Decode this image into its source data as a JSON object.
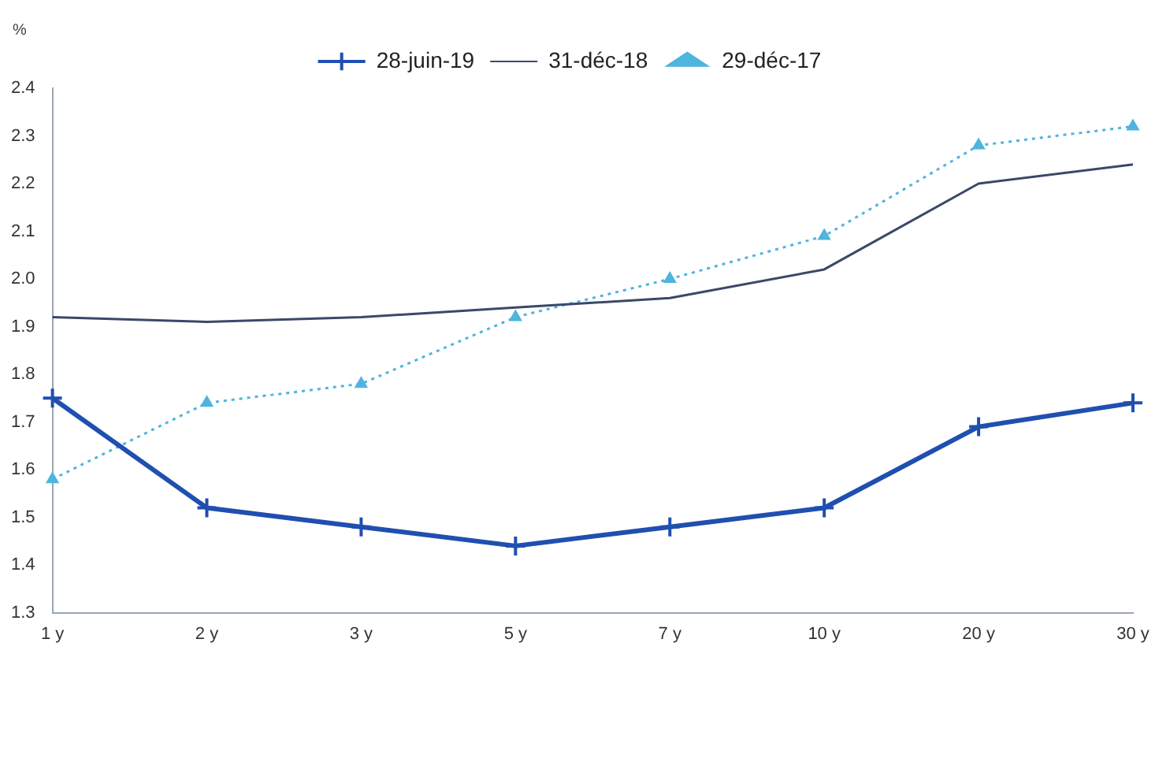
{
  "chart_data": {
    "type": "line",
    "ylabel": "%",
    "categories": [
      "1 y",
      "2 y",
      "3 y",
      "5 y",
      "7 y",
      "10 y",
      "20 y",
      "30 y"
    ],
    "series": [
      {
        "name": "28-juin-19",
        "color": "#1f4fb0",
        "marker": "cross",
        "line_style": "solid",
        "values": [
          1.75,
          1.52,
          1.48,
          1.44,
          1.48,
          1.52,
          1.69,
          1.74
        ]
      },
      {
        "name": "31-déc-18",
        "color": "#3c4868",
        "marker": "none",
        "line_style": "solid",
        "values": [
          1.92,
          1.91,
          1.92,
          1.94,
          1.96,
          2.02,
          2.2,
          2.24
        ]
      },
      {
        "name": "29-déc-17",
        "color": "#4fb4de",
        "marker": "triangle",
        "line_style": "dotted",
        "values": [
          1.58,
          1.74,
          1.78,
          1.92,
          2.0,
          2.09,
          2.28,
          2.32
        ]
      }
    ],
    "ylim": [
      1.3,
      2.4
    ],
    "yticks": [
      {
        "value": 1.3,
        "label": "1.3"
      },
      {
        "value": 1.4,
        "label": "1.4"
      },
      {
        "value": 1.5,
        "label": "1.5"
      },
      {
        "value": 1.6,
        "label": "1.6"
      },
      {
        "value": 1.7,
        "label": "1.7"
      },
      {
        "value": 1.8,
        "label": "1.8"
      },
      {
        "value": 1.9,
        "label": "1.9"
      },
      {
        "value": 2,
        "label": "2.0"
      },
      {
        "value": 2.1,
        "label": "2.1"
      },
      {
        "value": 2.2,
        "label": "2.2"
      },
      {
        "value": 2.3,
        "label": "2.3"
      },
      {
        "value": 2.4,
        "label": "2.4"
      }
    ],
    "grid": false,
    "legend": "top"
  }
}
